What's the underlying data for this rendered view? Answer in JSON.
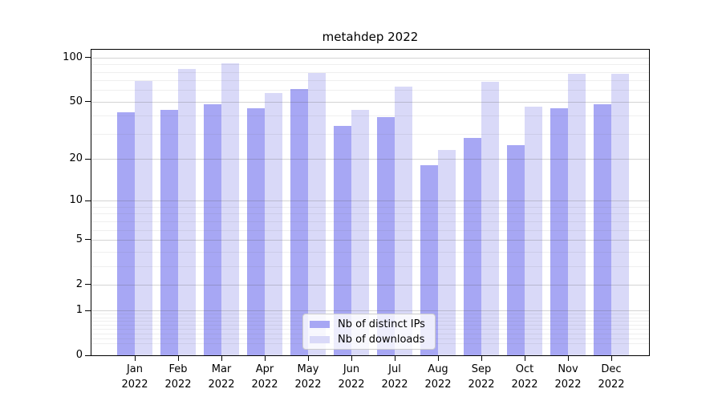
{
  "chart_data": {
    "type": "bar",
    "title": "metahdep 2022",
    "year": "2022",
    "months": [
      "Jan",
      "Feb",
      "Mar",
      "Apr",
      "May",
      "Jun",
      "Jul",
      "Aug",
      "Sep",
      "Oct",
      "Nov",
      "Dec"
    ],
    "categories": [
      "Jan 2022",
      "Feb 2022",
      "Mar 2022",
      "Apr 2022",
      "May 2022",
      "Jun 2022",
      "Jul 2022",
      "Aug 2022",
      "Sep 2022",
      "Oct 2022",
      "Nov 2022",
      "Dec 2022"
    ],
    "series": [
      {
        "name": "Nb of distinct IPs",
        "color": "#a7a7f4",
        "values": [
          42,
          44,
          48,
          45,
          61,
          34,
          39,
          18,
          28,
          25,
          45,
          48
        ]
      },
      {
        "name": "Nb of downloads",
        "color": "#d9d9f8",
        "values": [
          69,
          84,
          91,
          57,
          79,
          44,
          63,
          23,
          68,
          46,
          78,
          78
        ]
      }
    ],
    "yscale": "log(1+x)",
    "ylim": [
      0,
      113
    ],
    "yticks": [
      0,
      1,
      2,
      5,
      10,
      20,
      50,
      100
    ],
    "grid": true,
    "legend_position": "bottom-center"
  }
}
